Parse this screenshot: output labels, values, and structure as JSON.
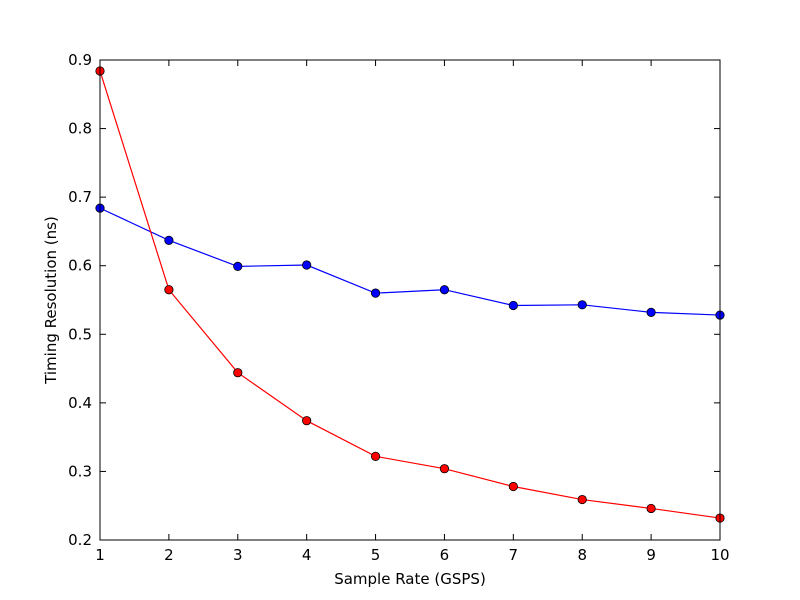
{
  "chart_data": {
    "type": "line",
    "xlabel": "Sample Rate (GSPS)",
    "ylabel": "Timing Resolution (ns)",
    "xlim": [
      1,
      10
    ],
    "ylim": [
      0.2,
      0.9
    ],
    "xticks": [
      1,
      2,
      3,
      4,
      5,
      6,
      7,
      8,
      9,
      10
    ],
    "yticks": [
      0.2,
      0.3,
      0.4,
      0.5,
      0.6,
      0.7,
      0.8,
      0.9
    ],
    "grid": false,
    "x": [
      1,
      2,
      3,
      4,
      5,
      6,
      7,
      8,
      9,
      10
    ],
    "series": [
      {
        "color": "#0000ff",
        "marker": "circle",
        "values": [
          0.684,
          0.637,
          0.599,
          0.601,
          0.56,
          0.565,
          0.542,
          0.543,
          0.532,
          0.528
        ]
      },
      {
        "color": "#ff0000",
        "marker": "circle",
        "values": [
          0.884,
          0.565,
          0.444,
          0.374,
          0.322,
          0.304,
          0.278,
          0.259,
          0.246,
          0.232
        ]
      }
    ]
  }
}
